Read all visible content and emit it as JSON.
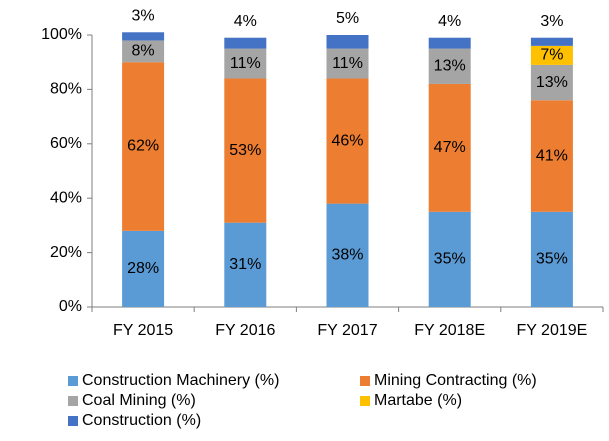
{
  "chart_data": {
    "type": "stacked_bar",
    "categories": [
      "FY 2015",
      "FY 2016",
      "FY 2017",
      "FY 2018E",
      "FY 2019E"
    ],
    "series": [
      {
        "name": "Construction Machinery (%)",
        "color": "#5b9bd5",
        "values": [
          28,
          31,
          38,
          35,
          35
        ],
        "value_labels": [
          "28%",
          "31%",
          "38%",
          "35%",
          "35%"
        ]
      },
      {
        "name": "Mining Contracting (%)",
        "color": "#ed7d31",
        "values": [
          62,
          53,
          46,
          47,
          41
        ],
        "value_labels": [
          "62%",
          "53%",
          "46%",
          "47%",
          "41%"
        ]
      },
      {
        "name": "Coal Mining (%)",
        "color": "#a5a5a5",
        "values": [
          8,
          11,
          11,
          13,
          13
        ],
        "value_labels": [
          "8%",
          "11%",
          "11%",
          "13%",
          "13%"
        ]
      },
      {
        "name": "Martabe (%)",
        "color": "#ffc000",
        "values": [
          null,
          null,
          null,
          null,
          7
        ],
        "value_labels": [
          null,
          null,
          null,
          null,
          "7%"
        ]
      },
      {
        "name": "Construction (%)",
        "color": "#4472c4",
        "values": [
          3,
          4,
          5,
          4,
          3
        ],
        "value_labels": [
          "3%",
          "4%",
          "5%",
          "4%",
          "3%"
        ]
      }
    ],
    "ylim": [
      0,
      100
    ],
    "yticks": [
      {
        "value": 0,
        "label": "0%"
      },
      {
        "value": 20,
        "label": "20%"
      },
      {
        "value": 40,
        "label": "40%"
      },
      {
        "value": 60,
        "label": "60%"
      },
      {
        "value": 80,
        "label": "80%"
      },
      {
        "value": 100,
        "label": "100%"
      }
    ],
    "legend": "bottom"
  }
}
